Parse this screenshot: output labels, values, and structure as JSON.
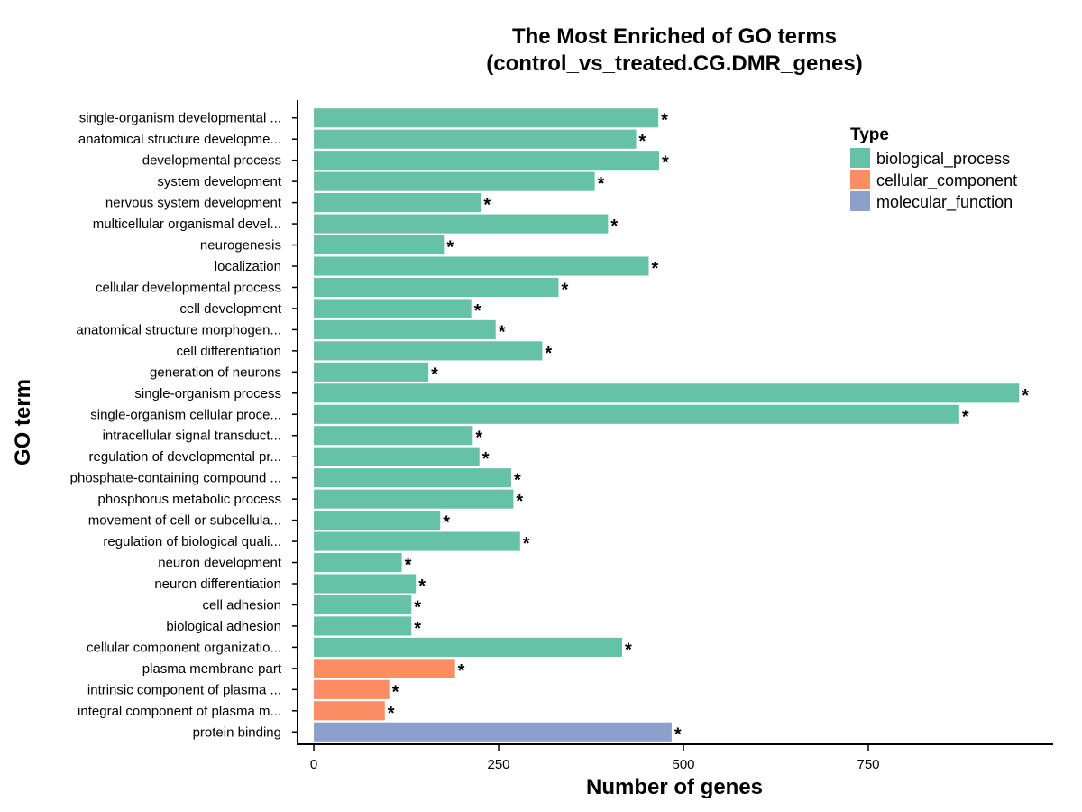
{
  "chart_data": {
    "type": "bar",
    "orientation": "horizontal",
    "title_lines": [
      "The Most Enriched of GO terms",
      "(control_vs_treated.CG.DMR_genes)"
    ],
    "xlabel": "Number of genes",
    "ylabel": "GO term",
    "xlim": [
      -22,
      1000
    ],
    "xticks": [
      0,
      250,
      500,
      750
    ],
    "grid": false,
    "legend": {
      "title": "Type",
      "position": "top-right",
      "entries": [
        {
          "name": "biological_process",
          "color": "#66C2A5"
        },
        {
          "name": "cellular_component",
          "color": "#FC8D62"
        },
        {
          "name": "molecular_function",
          "color": "#8DA0CB"
        }
      ]
    },
    "significance_marker": "*",
    "categories": [
      {
        "label": "single-organism developmental ...",
        "value": 466,
        "type": "biological_process"
      },
      {
        "label": "anatomical structure developme...",
        "value": 436,
        "type": "biological_process"
      },
      {
        "label": "developmental process",
        "value": 467,
        "type": "biological_process"
      },
      {
        "label": "system development",
        "value": 380,
        "type": "biological_process"
      },
      {
        "label": "nervous system development",
        "value": 226,
        "type": "biological_process"
      },
      {
        "label": "multicellular organismal devel...",
        "value": 398,
        "type": "biological_process"
      },
      {
        "label": "neurogenesis",
        "value": 176,
        "type": "biological_process"
      },
      {
        "label": "localization",
        "value": 453,
        "type": "biological_process"
      },
      {
        "label": "cellular developmental process",
        "value": 331,
        "type": "biological_process"
      },
      {
        "label": "cell development",
        "value": 213,
        "type": "biological_process"
      },
      {
        "label": "anatomical structure morphogen...",
        "value": 246,
        "type": "biological_process"
      },
      {
        "label": "cell differentiation",
        "value": 309,
        "type": "biological_process"
      },
      {
        "label": "generation of neurons",
        "value": 155,
        "type": "biological_process"
      },
      {
        "label": "single-organism process",
        "value": 954,
        "type": "biological_process"
      },
      {
        "label": "single-organism cellular proce...",
        "value": 873,
        "type": "biological_process"
      },
      {
        "label": "intracellular signal transduct...",
        "value": 215,
        "type": "biological_process"
      },
      {
        "label": "regulation of developmental pr...",
        "value": 224,
        "type": "biological_process"
      },
      {
        "label": "phosphate-containing compound ...",
        "value": 267,
        "type": "biological_process"
      },
      {
        "label": "phosphorus metabolic process",
        "value": 270,
        "type": "biological_process"
      },
      {
        "label": "movement of cell or subcellula...",
        "value": 171,
        "type": "biological_process"
      },
      {
        "label": "regulation of biological quali...",
        "value": 279,
        "type": "biological_process"
      },
      {
        "label": "neuron development",
        "value": 119,
        "type": "biological_process"
      },
      {
        "label": "neuron differentiation",
        "value": 138,
        "type": "biological_process"
      },
      {
        "label": "cell adhesion",
        "value": 132,
        "type": "biological_process"
      },
      {
        "label": "biological adhesion",
        "value": 132,
        "type": "biological_process"
      },
      {
        "label": "cellular component organizatio...",
        "value": 417,
        "type": "biological_process"
      },
      {
        "label": "plasma membrane part",
        "value": 191,
        "type": "cellular_component"
      },
      {
        "label": "intrinsic component of plasma ...",
        "value": 102,
        "type": "cellular_component"
      },
      {
        "label": "integral component of plasma m...",
        "value": 96,
        "type": "cellular_component"
      },
      {
        "label": "protein binding",
        "value": 484,
        "type": "molecular_function"
      }
    ]
  }
}
